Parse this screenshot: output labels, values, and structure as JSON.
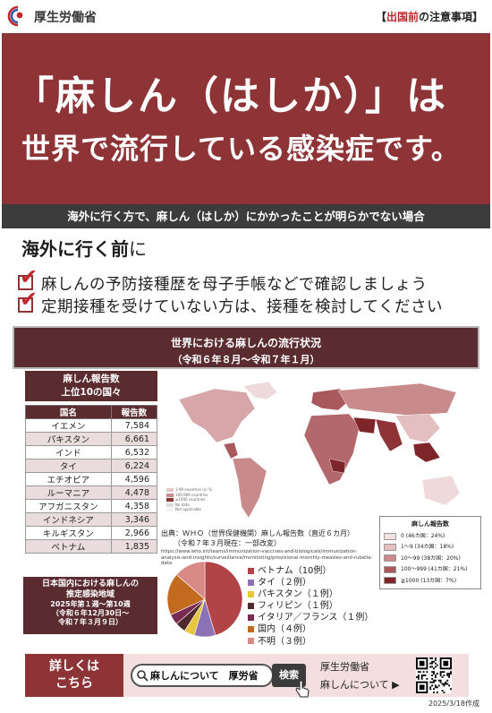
{
  "header": {
    "org": "厚生労働省",
    "notice_open": "【",
    "notice_highlight": "出国前",
    "notice_rest": "の注意事項】"
  },
  "hero": {
    "line1": "「麻しん（はしか）」は",
    "line2": "世界で流行している感染症です。"
  },
  "strip": "海外に行く方で、麻しん（はしか）にかかったことが明らかでない場合",
  "before": {
    "main": "海外に行く前",
    "suffix": "に"
  },
  "checks": [
    "麻しんの予防接種歴を母子手帳などで確認しましょう",
    "定期接種を受けていない方は、接種を検討してください"
  ],
  "section": {
    "title": "世界における麻しんの流行状況",
    "period": "（令和６年８月～令和７年１月）"
  },
  "ranking": {
    "title_line1": "麻しん報告数",
    "title_line2": "上位10の国々",
    "headers": [
      "国名",
      "報告数"
    ],
    "rows": [
      {
        "country": "イエメン",
        "count": "7,584"
      },
      {
        "country": "パキスタン",
        "count": "6,661"
      },
      {
        "country": "インド",
        "count": "6,532"
      },
      {
        "country": "タイ",
        "count": "6,224"
      },
      {
        "country": "エチオピア",
        "count": "4,596"
      },
      {
        "country": "ルーマニア",
        "count": "4,478"
      },
      {
        "country": "アフガニスタン",
        "count": "4,358"
      },
      {
        "country": "インドネシア",
        "count": "3,346"
      },
      {
        "country": "キルギスタン",
        "count": "2,966"
      },
      {
        "country": "ベトナム",
        "count": "1,835"
      }
    ]
  },
  "map_legend_small": [
    {
      "label": "1-99 countries (x) %",
      "color": "#e8c5c6"
    },
    {
      "label": "100-999 countries",
      "color": "#c98a8c"
    },
    {
      "label": "≥1000 countries",
      "color": "#8e3336"
    },
    {
      "label": "No data",
      "color": "#dddddd"
    },
    {
      "label": "Not applicable",
      "color": "#f4f4f4"
    }
  ],
  "source": {
    "line1": "出典：ＷＨＯ（世界保健機関）麻しん報告数（直近６カ月）",
    "line2": "（令和７年３月現在：一部改変）",
    "url": "https://www.who.int/teams/immunization-vaccines-and-biologicals/immunization-analysis-and-insights/surveillance/monitoring/provisional-monthly-measles-and-rubella-data"
  },
  "map_legend": {
    "title": "麻しん報告数",
    "items": [
      {
        "label": "0 (46カ国：24%)",
        "color": "#f3e4e4"
      },
      {
        "label": "1～9 (34カ国：18%)",
        "color": "#e3bfc0"
      },
      {
        "label": "10～99 (38カ国：20%)",
        "color": "#c98a8c"
      },
      {
        "label": "100～999 (41カ国：21%)",
        "color": "#a9595c"
      },
      {
        "label": "≧1000 (13カ国：7%)",
        "color": "#7d2528"
      }
    ]
  },
  "domestic": {
    "title_line1": "日本国内における麻しんの",
    "title_line2": "推定感染地域",
    "period_line1": "2025年第１週～第10週",
    "period_line2": "（令和６年12月30日～",
    "period_line3": "令和７年３月９日）"
  },
  "pie": {
    "series": [
      {
        "label": "ベトナム（10例）",
        "value": 10,
        "color": "#b24346"
      },
      {
        "label": "タイ（２例）",
        "value": 2,
        "color": "#8a72b4"
      },
      {
        "label": "パキスタン（１例）",
        "value": 1,
        "color": "#e8c53a"
      },
      {
        "label": "フィリピン（１例）",
        "value": 1,
        "color": "#4e2a2d"
      },
      {
        "label": "イタリア／フランス（１例）",
        "value": 1,
        "color": "#7a2b54"
      },
      {
        "label": "国内（４例）",
        "value": 4,
        "color": "#c26a1e"
      },
      {
        "label": "不明（３例）",
        "value": 3,
        "color": "#d98a86"
      }
    ]
  },
  "bottom": {
    "more_line1": "詳しくは",
    "more_line2": "こちら",
    "search_query": "麻しんについて　厚労省",
    "search_button": "検索",
    "org": "厚生労働省",
    "link": "麻しんについて ▶"
  },
  "made": "2025/3/18作成"
}
